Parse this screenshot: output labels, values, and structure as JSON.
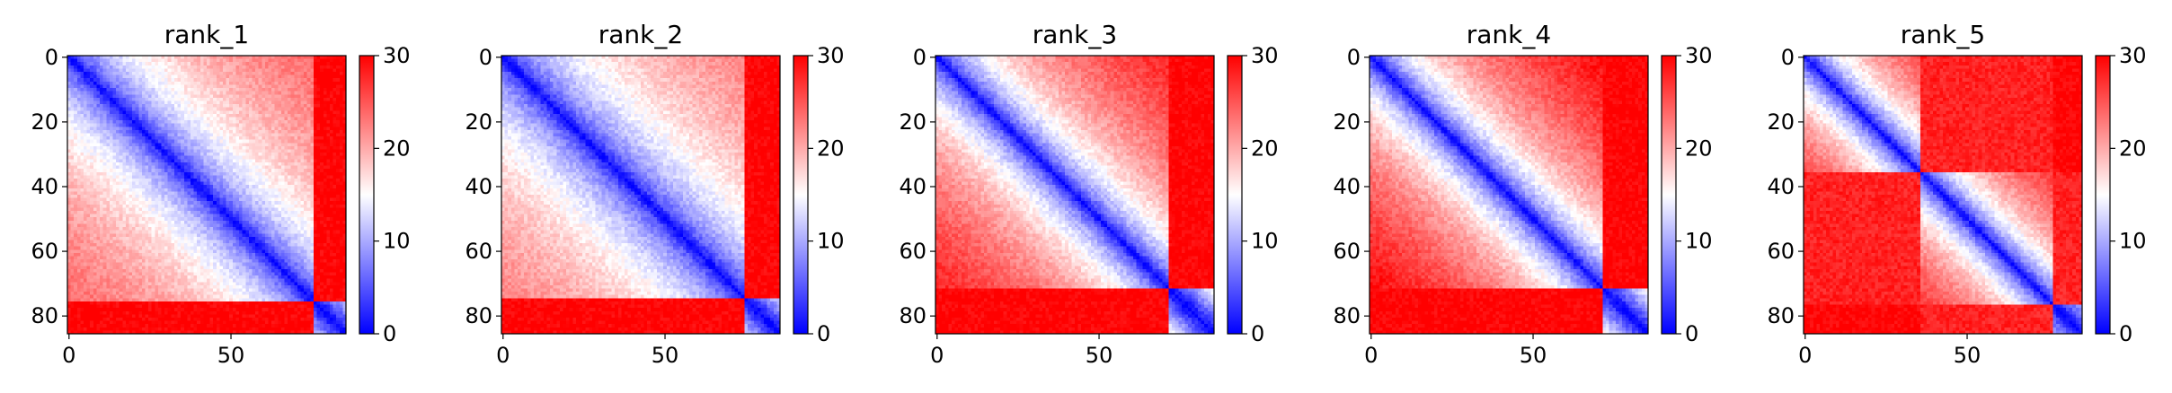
{
  "chart_data": {
    "type": "heatmap",
    "colormap": {
      "name": "bwr",
      "low": "#0000ff",
      "mid": "#ffffff",
      "high": "#ff0000"
    },
    "panels": [
      {
        "title": "rank_1",
        "size": 86,
        "vmin": 0,
        "vmax": 30,
        "color_ticks": [
          "0",
          "10",
          "20",
          "30"
        ],
        "x_ticks": [
          "0",
          "50"
        ],
        "y_ticks": [
          "0",
          "20",
          "40",
          "60",
          "80"
        ],
        "pattern": {
          "type": "domain",
          "boundary": 76,
          "in_scale": 8,
          "cross_value": 30
        }
      },
      {
        "title": "rank_2",
        "size": 86,
        "vmin": 0,
        "vmax": 30,
        "color_ticks": [
          "0",
          "10",
          "20",
          "30"
        ],
        "x_ticks": [
          "0",
          "50"
        ],
        "y_ticks": [
          "0",
          "20",
          "40",
          "60",
          "80"
        ],
        "pattern": {
          "type": "domain",
          "boundary": 75,
          "in_scale": 7.5,
          "cross_value": 30
        }
      },
      {
        "title": "rank_3",
        "size": 86,
        "vmin": 0,
        "vmax": 30,
        "color_ticks": [
          "0",
          "10",
          "20",
          "30"
        ],
        "x_ticks": [
          "0",
          "50"
        ],
        "y_ticks": [
          "0",
          "20",
          "40",
          "60",
          "80"
        ],
        "pattern": {
          "type": "domain",
          "boundary": 72,
          "in_scale": 9.5,
          "cross_value": 30
        }
      },
      {
        "title": "rank_4",
        "size": 86,
        "vmin": 0,
        "vmax": 30,
        "color_ticks": [
          "0",
          "10",
          "20",
          "30"
        ],
        "x_ticks": [
          "0",
          "50"
        ],
        "y_ticks": [
          "0",
          "20",
          "40",
          "60",
          "80"
        ],
        "pattern": {
          "type": "domain",
          "boundary": 72,
          "in_scale": 10,
          "cross_value": 30
        }
      },
      {
        "title": "rank_5",
        "size": 86,
        "vmin": 0,
        "vmax": 30,
        "color_ticks": [
          "0",
          "10",
          "20",
          "30"
        ],
        "x_ticks": [
          "0",
          "50"
        ],
        "y_ticks": [
          "0",
          "20",
          "40",
          "60",
          "80"
        ],
        "pattern": {
          "type": "two_domain",
          "split": 36,
          "boundary": 77,
          "in_scale": 11,
          "cross_value": 28
        }
      }
    ]
  }
}
